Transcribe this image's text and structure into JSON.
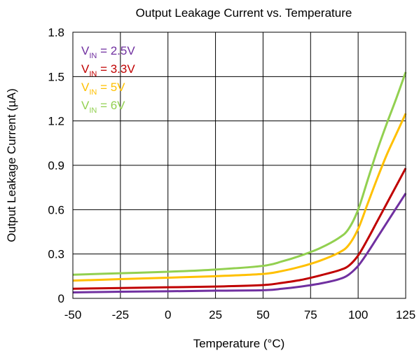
{
  "chart_data": {
    "type": "line",
    "title": "Output Leakage Current vs. Temperature",
    "xlabel": "Temperature (°C)",
    "ylabel": "Output Leakage Current (µA)",
    "xlim": [
      -50,
      125
    ],
    "ylim": [
      0,
      1.8
    ],
    "x_ticks": [
      -50,
      -25,
      0,
      25,
      50,
      75,
      100,
      125
    ],
    "y_ticks": [
      0,
      0.3,
      0.6,
      0.9,
      1.2,
      1.5,
      1.8
    ],
    "x_tick_labels": [
      "-50",
      "-25",
      "0",
      "25",
      "50",
      "75",
      "100",
      "125"
    ],
    "y_tick_labels": [
      "0",
      "0.3",
      "0.6",
      "0.9",
      "1.2",
      "1.5",
      "1.8"
    ],
    "grid": true,
    "legend_position": "top-left",
    "series": [
      {
        "name": "VIN = 2.5V",
        "label_main": "V",
        "label_sub": "IN",
        "label_rest": " = 2.5V",
        "color": "#7030A0",
        "x": [
          -50,
          -25,
          0,
          25,
          50,
          60,
          70,
          80,
          90,
          95,
          100,
          105,
          110,
          115,
          120,
          125
        ],
        "y": [
          0.04,
          0.045,
          0.048,
          0.052,
          0.055,
          0.065,
          0.08,
          0.1,
          0.13,
          0.16,
          0.22,
          0.31,
          0.41,
          0.51,
          0.61,
          0.71
        ]
      },
      {
        "name": "VIN = 3.3V",
        "label_main": "V",
        "label_sub": "IN",
        "label_rest": " = 3.3V",
        "color": "#C00000",
        "x": [
          -50,
          -25,
          0,
          25,
          50,
          60,
          70,
          80,
          90,
          95,
          100,
          105,
          110,
          115,
          120,
          125
        ],
        "y": [
          0.065,
          0.07,
          0.075,
          0.08,
          0.09,
          0.105,
          0.125,
          0.155,
          0.19,
          0.22,
          0.29,
          0.4,
          0.52,
          0.64,
          0.76,
          0.88
        ]
      },
      {
        "name": "VIN = 5V",
        "label_main": "V",
        "label_sub": "IN",
        "label_rest": " = 5V",
        "color": "#FFC000",
        "x": [
          -50,
          -25,
          0,
          25,
          50,
          60,
          70,
          80,
          90,
          95,
          100,
          105,
          110,
          115,
          120,
          125
        ],
        "y": [
          0.12,
          0.13,
          0.14,
          0.15,
          0.165,
          0.185,
          0.215,
          0.255,
          0.31,
          0.36,
          0.47,
          0.64,
          0.81,
          0.97,
          1.11,
          1.25
        ]
      },
      {
        "name": "VIN = 6V",
        "label_main": "V",
        "label_sub": "IN",
        "label_rest": " = 6V",
        "color": "#92D050",
        "x": [
          -50,
          -25,
          0,
          25,
          50,
          60,
          70,
          80,
          90,
          95,
          100,
          105,
          110,
          115,
          120,
          125
        ],
        "y": [
          0.16,
          0.17,
          0.18,
          0.195,
          0.22,
          0.25,
          0.29,
          0.34,
          0.41,
          0.47,
          0.6,
          0.8,
          1.0,
          1.18,
          1.35,
          1.53
        ]
      }
    ]
  }
}
